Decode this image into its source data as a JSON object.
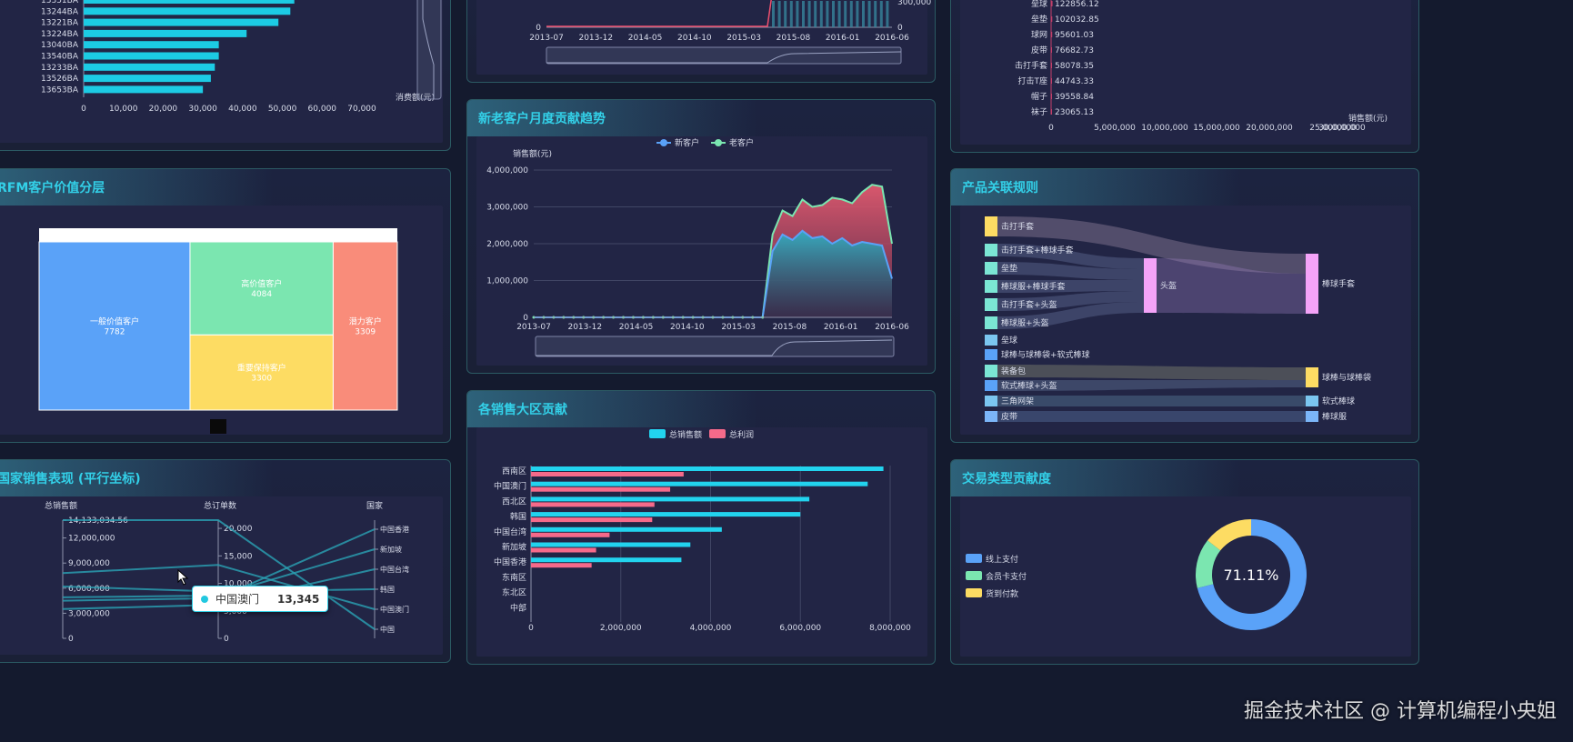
{
  "panels": {
    "customer_ranking": {
      "title": ""
    },
    "rfm": {
      "title": "RFM客户价值分层"
    },
    "country": {
      "title": "国家销售表现 (平行坐标)"
    },
    "monthly_sales": {
      "title": ""
    },
    "new_old": {
      "title": "新老客户月度贡献趋势"
    },
    "region": {
      "title": "各销售大区贡献"
    },
    "product_sales": {
      "title": ""
    },
    "association": {
      "title": "产品关联规则"
    },
    "payment": {
      "title": "交易类型贡献度"
    }
  },
  "tooltip": {
    "label": "中国澳门",
    "value": "13,345"
  },
  "watermark": "掘金技术社区 @ 计算机编程小央姐",
  "chart_data": [
    {
      "id": "customer_ranking",
      "type": "bar",
      "categories": [
        "13351BA",
        "13244BA",
        "13221BA",
        "13224BA",
        "13040BA",
        "13540BA",
        "13233BA",
        "13526BA",
        "13653BA"
      ],
      "values": [
        53000,
        52000,
        49000,
        41000,
        34000,
        34000,
        33000,
        32000,
        30000
      ],
      "xlabel": "消费额(元)",
      "xticks": [
        "0",
        "10,000",
        "20,000",
        "30,000",
        "40,000",
        "50,000",
        "60,000",
        "70,000"
      ],
      "xlim": [
        0,
        70000
      ]
    },
    {
      "id": "monthly_sales",
      "type": "line",
      "xticks": [
        "2013-07",
        "2013-12",
        "2014-05",
        "2014-10",
        "2015-03",
        "2015-08",
        "2016-01",
        "2016-06"
      ],
      "yleft_ticks": [
        "0"
      ],
      "yright_ticks": [
        "0",
        "300,000"
      ]
    },
    {
      "id": "product_sales",
      "type": "bar",
      "categories": [
        "垒球",
        "垒垫",
        "球网",
        "皮带",
        "击打手套",
        "打击T座",
        "帽子",
        "袜子"
      ],
      "values": [
        122856.12,
        102032.85,
        95601.03,
        76682.73,
        58078.35,
        44743.33,
        39558.84,
        23065.13
      ],
      "value_labels": [
        "122856.12",
        "102032.85",
        "95601.03",
        "76682.73",
        "58078.35",
        "44743.33",
        "39558.84",
        "23065.13"
      ],
      "xticks": [
        "0",
        "5,000,000",
        "10,000,000",
        "15,000,000",
        "20,000,000",
        "25,000,000",
        "30,000,000"
      ],
      "xlabel": "销售额(元)"
    },
    {
      "id": "rfm",
      "type": "treemap",
      "nodes": [
        {
          "name": "一般价值客户",
          "value": 7782,
          "color": "#5aa2f8"
        },
        {
          "name": "高价值客户",
          "value": 4084,
          "color": "#7be6b0"
        },
        {
          "name": "重要保持客户",
          "value": 3300,
          "color": "#fddc63"
        },
        {
          "name": "潜力客户",
          "value": 3309,
          "color": "#f98c7a"
        }
      ]
    },
    {
      "id": "new_old",
      "type": "area",
      "legend": [
        "新客户",
        "老客户"
      ],
      "ylabel": "销售额(元)",
      "yticks": [
        "0",
        "1,000,000",
        "2,000,000",
        "3,000,000",
        "4,000,000"
      ],
      "ylim": [
        0,
        4000000
      ],
      "xticks": [
        "2013-07",
        "2013-12",
        "2014-05",
        "2014-10",
        "2015-03",
        "2015-08",
        "2016-01",
        "2016-06"
      ],
      "series": [
        {
          "name": "新客户",
          "color": "#5aa2f8",
          "values": [
            0,
            0,
            0,
            0,
            0,
            0,
            0,
            0,
            0,
            0,
            0,
            0,
            0,
            0,
            0,
            0,
            0,
            0,
            0,
            0,
            0,
            0,
            0,
            0,
            1800000,
            2250000,
            2100000,
            2350000,
            2150000,
            2200000,
            2000000,
            2150000,
            1950000,
            2050000,
            2000000,
            1950000,
            1050000
          ]
        },
        {
          "name": "老客户",
          "color": "#7be6b0",
          "values": [
            0,
            0,
            0,
            0,
            0,
            0,
            0,
            0,
            0,
            0,
            0,
            0,
            0,
            0,
            0,
            0,
            0,
            0,
            0,
            0,
            0,
            0,
            0,
            0,
            2250000,
            2900000,
            2750000,
            3200000,
            3000000,
            3050000,
            3250000,
            3200000,
            3100000,
            3400000,
            3600000,
            3550000,
            2000000
          ]
        }
      ]
    },
    {
      "id": "region",
      "type": "bar",
      "legend": [
        "总销售额",
        "总利润"
      ],
      "categories": [
        "西南区",
        "中国澳门",
        "西北区",
        "韩国",
        "中国台湾",
        "新加坡",
        "中国香港",
        "东南区",
        "东北区",
        "中部"
      ],
      "series": [
        {
          "name": "总销售额",
          "color": "#22d3ee",
          "values": [
            7850000,
            7500000,
            6200000,
            6000000,
            4250000,
            3550000,
            3350000,
            0,
            0,
            0
          ]
        },
        {
          "name": "总利润",
          "color": "#f56a8a",
          "values": [
            3400000,
            3100000,
            2750000,
            2700000,
            1750000,
            1450000,
            1350000,
            0,
            0,
            0
          ]
        }
      ],
      "xticks": [
        "0",
        "2,000,000",
        "4,000,000",
        "6,000,000",
        "8,000,000"
      ],
      "xlim": [
        0,
        8000000
      ]
    },
    {
      "id": "country",
      "type": "parallel",
      "axes": [
        {
          "name": "总销售额",
          "ticks": [
            "0",
            "3,000,000",
            "6,000,000",
            "9,000,000",
            "12,000,000",
            "14,133,034.56"
          ],
          "max": 14133034.56
        },
        {
          "name": "总订单数",
          "ticks": [
            "0",
            "5,000",
            "10,000",
            "15,000",
            "20,000"
          ],
          "max": 21500
        },
        {
          "name": "国家",
          "categories": [
            "中国香港",
            "新加坡",
            "中国台湾",
            "韩国",
            "中国澳门",
            "中国"
          ]
        }
      ],
      "lines": [
        {
          "sales": 14133034.56,
          "orders": 21500,
          "country": "中国"
        },
        {
          "sales": 7800000,
          "orders": 13345,
          "country": "中国澳门"
        },
        {
          "sales": 6200000,
          "orders": 8500,
          "country": "韩国"
        },
        {
          "sales": 4500000,
          "orders": 7300,
          "country": "中国香港"
        },
        {
          "sales": 4900000,
          "orders": 7800,
          "country": "新加坡"
        },
        {
          "sales": 3500000,
          "orders": 6100,
          "country": "中国台湾"
        }
      ]
    },
    {
      "id": "association",
      "type": "sankey",
      "left_nodes": [
        "击打手套",
        "击打手套+棒球手套",
        "垒垫",
        "棒球服+棒球手套",
        "击打手套+头盔",
        "棒球服+头盔",
        "垒球",
        "球棒与球棒袋+软式棒球",
        "装备包",
        "软式棒球+头盔",
        "三角网架",
        "皮带"
      ],
      "middle_nodes": [
        "头盔"
      ],
      "right_nodes": [
        "棒球手套",
        "球棒与球棒袋",
        "软式棒球",
        "棒球服"
      ]
    },
    {
      "id": "payment",
      "type": "pie",
      "center_label": "71.11%",
      "legend": [
        "线上支付",
        "会员卡支付",
        "货到付款"
      ],
      "values": [
        71.11,
        14.5,
        14.39
      ],
      "colors": [
        "#5aa2f8",
        "#7be6b0",
        "#fddc63"
      ]
    }
  ]
}
